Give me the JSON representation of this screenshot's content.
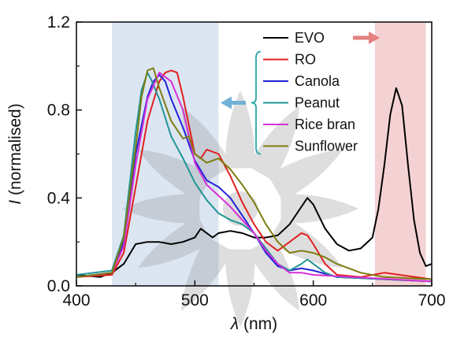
{
  "chart_data": {
    "type": "line",
    "title": "",
    "xlabel": {
      "symbol": "λ",
      "unit": " (nm)"
    },
    "ylabel": {
      "symbol": "I",
      "unit": " (normalised)"
    },
    "xlim": [
      400,
      700
    ],
    "ylim": [
      0,
      1.2
    ],
    "x_ticks": [
      400,
      500,
      600,
      700
    ],
    "x_tick_labels": [
      "400",
      "500",
      "600",
      "700"
    ],
    "y_ticks": [
      0,
      0.4,
      0.8,
      1.2
    ],
    "y_tick_labels": [
      "0.0",
      "0.4",
      "0.8",
      "1.2"
    ],
    "grid": false,
    "legend_position": "top-right",
    "shaded_regions": [
      {
        "x": [
          430,
          520
        ],
        "color": "#dce6f2"
      },
      {
        "x": [
          652,
          695
        ],
        "color": "#f4d2d3"
      }
    ],
    "annotations": [
      {
        "kind": "arrow",
        "points": "right",
        "color": "#e58080",
        "anchor_series": "EVO"
      },
      {
        "kind": "brace-arrow",
        "points": "left",
        "color": "#6fb2d6",
        "covers_series": [
          "RO",
          "Canola",
          "Peanut",
          "Rice bran",
          "Sunflower"
        ]
      }
    ],
    "series": [
      {
        "name": "EVO",
        "color": "#000000",
        "points": [
          [
            400,
            0.05
          ],
          [
            420,
            0.04
          ],
          [
            430,
            0.06
          ],
          [
            440,
            0.1
          ],
          [
            450,
            0.19
          ],
          [
            460,
            0.2
          ],
          [
            470,
            0.2
          ],
          [
            480,
            0.19
          ],
          [
            490,
            0.2
          ],
          [
            500,
            0.22
          ],
          [
            505,
            0.26
          ],
          [
            510,
            0.24
          ],
          [
            515,
            0.22
          ],
          [
            520,
            0.24
          ],
          [
            530,
            0.25
          ],
          [
            540,
            0.24
          ],
          [
            550,
            0.22
          ],
          [
            560,
            0.22
          ],
          [
            570,
            0.23
          ],
          [
            580,
            0.28
          ],
          [
            590,
            0.36
          ],
          [
            595,
            0.4
          ],
          [
            600,
            0.37
          ],
          [
            610,
            0.26
          ],
          [
            620,
            0.19
          ],
          [
            630,
            0.16
          ],
          [
            640,
            0.17
          ],
          [
            650,
            0.22
          ],
          [
            655,
            0.35
          ],
          [
            660,
            0.55
          ],
          [
            665,
            0.78
          ],
          [
            670,
            0.9
          ],
          [
            675,
            0.82
          ],
          [
            680,
            0.55
          ],
          [
            685,
            0.3
          ],
          [
            690,
            0.15
          ],
          [
            695,
            0.09
          ],
          [
            700,
            0.1
          ]
        ]
      },
      {
        "name": "RO",
        "color": "#e02020",
        "points": [
          [
            400,
            0.04
          ],
          [
            430,
            0.05
          ],
          [
            440,
            0.15
          ],
          [
            450,
            0.45
          ],
          [
            460,
            0.75
          ],
          [
            470,
            0.93
          ],
          [
            475,
            0.97
          ],
          [
            480,
            0.98
          ],
          [
            485,
            0.97
          ],
          [
            490,
            0.86
          ],
          [
            500,
            0.6
          ],
          [
            505,
            0.58
          ],
          [
            510,
            0.62
          ],
          [
            520,
            0.6
          ],
          [
            530,
            0.5
          ],
          [
            540,
            0.38
          ],
          [
            550,
            0.28
          ],
          [
            560,
            0.2
          ],
          [
            570,
            0.16
          ],
          [
            580,
            0.2
          ],
          [
            590,
            0.24
          ],
          [
            595,
            0.23
          ],
          [
            600,
            0.19
          ],
          [
            610,
            0.1
          ],
          [
            620,
            0.05
          ],
          [
            640,
            0.04
          ],
          [
            660,
            0.06
          ],
          [
            700,
            0.03
          ]
        ]
      },
      {
        "name": "Canola",
        "color": "#2222d8",
        "points": [
          [
            400,
            0.04
          ],
          [
            430,
            0.06
          ],
          [
            440,
            0.2
          ],
          [
            450,
            0.6
          ],
          [
            460,
            0.86
          ],
          [
            465,
            0.93
          ],
          [
            470,
            0.96
          ],
          [
            475,
            0.93
          ],
          [
            480,
            0.85
          ],
          [
            490,
            0.72
          ],
          [
            500,
            0.57
          ],
          [
            510,
            0.48
          ],
          [
            520,
            0.45
          ],
          [
            530,
            0.4
          ],
          [
            540,
            0.32
          ],
          [
            550,
            0.24
          ],
          [
            560,
            0.15
          ],
          [
            570,
            0.09
          ],
          [
            580,
            0.07
          ],
          [
            590,
            0.08
          ],
          [
            600,
            0.07
          ],
          [
            620,
            0.04
          ],
          [
            700,
            0.02
          ]
        ]
      },
      {
        "name": "Peanut",
        "color": "#1f9595",
        "points": [
          [
            400,
            0.05
          ],
          [
            430,
            0.07
          ],
          [
            440,
            0.23
          ],
          [
            450,
            0.7
          ],
          [
            455,
            0.89
          ],
          [
            460,
            0.97
          ],
          [
            463,
            0.94
          ],
          [
            470,
            0.85
          ],
          [
            480,
            0.68
          ],
          [
            490,
            0.58
          ],
          [
            500,
            0.47
          ],
          [
            510,
            0.39
          ],
          [
            520,
            0.33
          ],
          [
            530,
            0.3
          ],
          [
            540,
            0.28
          ],
          [
            550,
            0.24
          ],
          [
            560,
            0.17
          ],
          [
            570,
            0.1
          ],
          [
            580,
            0.07
          ],
          [
            590,
            0.1
          ],
          [
            595,
            0.12
          ],
          [
            600,
            0.1
          ],
          [
            610,
            0.06
          ],
          [
            620,
            0.04
          ],
          [
            700,
            0.02
          ]
        ]
      },
      {
        "name": "Rice bran",
        "color": "#d530d5",
        "points": [
          [
            400,
            0.04
          ],
          [
            430,
            0.06
          ],
          [
            440,
            0.18
          ],
          [
            450,
            0.55
          ],
          [
            460,
            0.85
          ],
          [
            470,
            0.97
          ],
          [
            480,
            0.93
          ],
          [
            490,
            0.8
          ],
          [
            500,
            0.56
          ],
          [
            510,
            0.46
          ],
          [
            520,
            0.41
          ],
          [
            530,
            0.36
          ],
          [
            540,
            0.3
          ],
          [
            550,
            0.24
          ],
          [
            560,
            0.16
          ],
          [
            570,
            0.1
          ],
          [
            580,
            0.06
          ],
          [
            590,
            0.06
          ],
          [
            600,
            0.05
          ],
          [
            700,
            0.02
          ]
        ]
      },
      {
        "name": "Sunflower",
        "color": "#7d7d10",
        "points": [
          [
            400,
            0.04
          ],
          [
            430,
            0.06
          ],
          [
            440,
            0.22
          ],
          [
            450,
            0.63
          ],
          [
            455,
            0.86
          ],
          [
            460,
            0.98
          ],
          [
            465,
            0.99
          ],
          [
            470,
            0.9
          ],
          [
            480,
            0.75
          ],
          [
            490,
            0.67
          ],
          [
            495,
            0.68
          ],
          [
            500,
            0.6
          ],
          [
            510,
            0.56
          ],
          [
            520,
            0.58
          ],
          [
            530,
            0.53
          ],
          [
            540,
            0.46
          ],
          [
            550,
            0.38
          ],
          [
            560,
            0.28
          ],
          [
            570,
            0.2
          ],
          [
            580,
            0.15
          ],
          [
            590,
            0.16
          ],
          [
            600,
            0.15
          ],
          [
            610,
            0.13
          ],
          [
            620,
            0.1
          ],
          [
            640,
            0.06
          ],
          [
            660,
            0.04
          ],
          [
            700,
            0.03
          ]
        ]
      }
    ]
  }
}
